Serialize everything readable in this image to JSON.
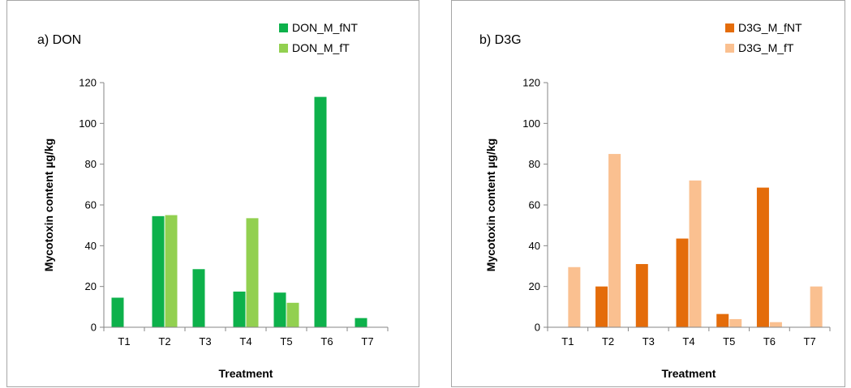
{
  "chart_data": [
    {
      "type": "bar",
      "title": "a) DON",
      "xlabel": "Treatment",
      "ylabel": "Mycotoxin content µg/kg",
      "ylim": [
        0,
        120
      ],
      "yticks": [
        0,
        20,
        40,
        60,
        80,
        100,
        120
      ],
      "legend": "top-right",
      "categories": [
        "T1",
        "T2",
        "T3",
        "T4",
        "T5",
        "T6",
        "T7"
      ],
      "series": [
        {
          "name": "DON_M_fNT",
          "color": "#0db14b",
          "values": [
            14.5,
            54.5,
            28.5,
            17.5,
            17,
            113,
            4.5
          ]
        },
        {
          "name": "DON_M_fT",
          "color": "#92d050",
          "values": [
            0,
            55,
            0,
            53.5,
            12,
            0,
            0
          ]
        }
      ]
    },
    {
      "type": "bar",
      "title": "b) D3G",
      "xlabel": "Treatment",
      "ylabel": "Mycotoxin content µg/kg",
      "ylim": [
        0,
        120
      ],
      "yticks": [
        0,
        20,
        40,
        60,
        80,
        100,
        120
      ],
      "legend": "top-right",
      "categories": [
        "T1",
        "T2",
        "T3",
        "T4",
        "T5",
        "T6",
        "T7"
      ],
      "series": [
        {
          "name": "D3G_M_fNT",
          "color": "#e46c0a",
          "values": [
            0,
            20,
            31,
            43.5,
            6.5,
            68.5,
            0
          ]
        },
        {
          "name": "D3G_M_fT",
          "color": "#fac090",
          "values": [
            29.5,
            85,
            0,
            72,
            4,
            2.5,
            20
          ]
        }
      ]
    }
  ]
}
